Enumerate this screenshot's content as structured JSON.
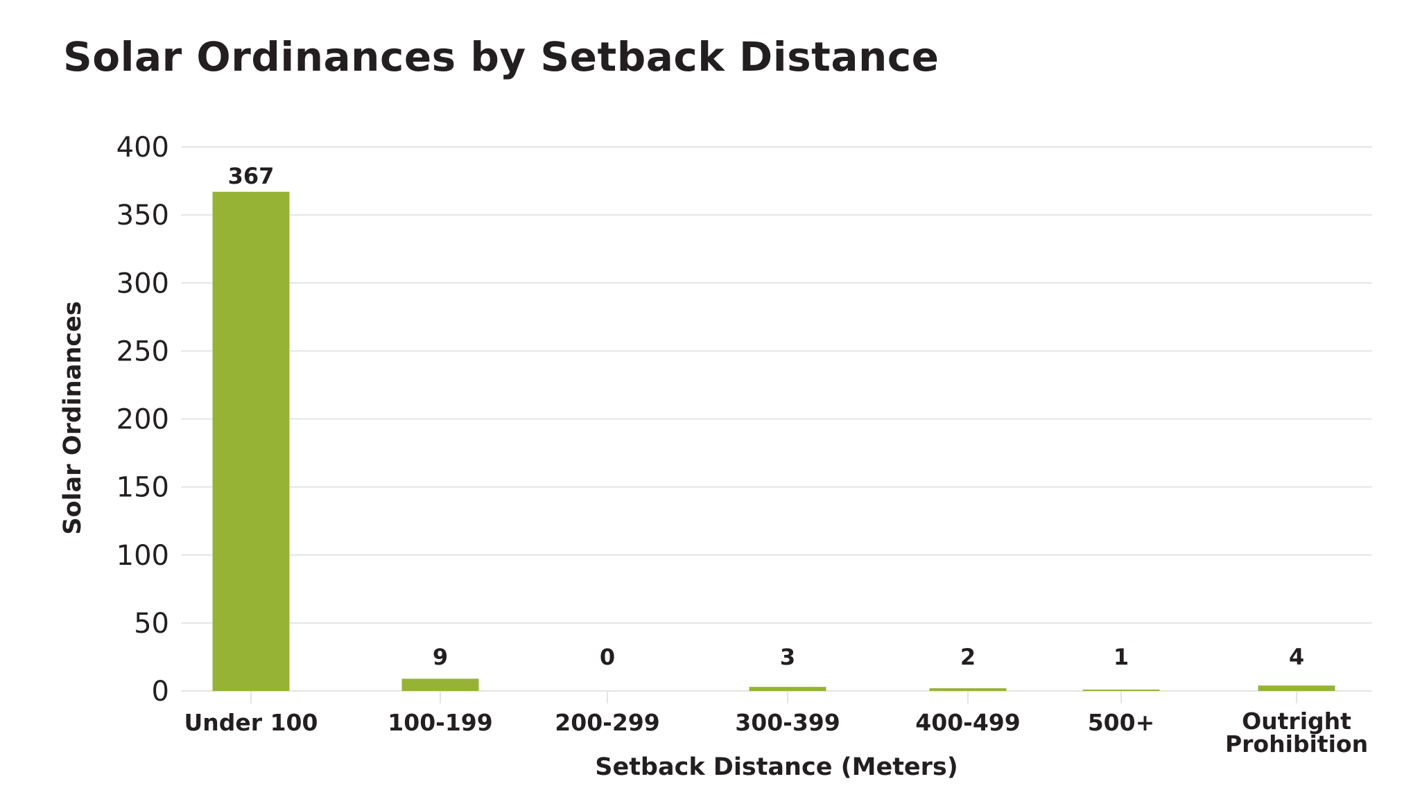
{
  "chart_data": {
    "type": "bar",
    "title": "Solar Ordinances by Setback Distance",
    "xlabel": "Setback Distance (Meters)",
    "ylabel": "Solar Ordinances",
    "categories": [
      "Under 100",
      "100-199",
      "200-299",
      "300-399",
      "400-499",
      "500+",
      "Outright Prohibition"
    ],
    "values": [
      367,
      9,
      0,
      3,
      2,
      1,
      4
    ],
    "value_labels": [
      "367",
      "9",
      "0",
      "3",
      "2",
      "1",
      "4"
    ],
    "ylim": [
      0,
      400
    ],
    "yticks": [
      0,
      50,
      100,
      150,
      200,
      250,
      300,
      350,
      400
    ],
    "grid": true,
    "bar_color": "#97b335",
    "grid_color": "#e4e4e4"
  }
}
